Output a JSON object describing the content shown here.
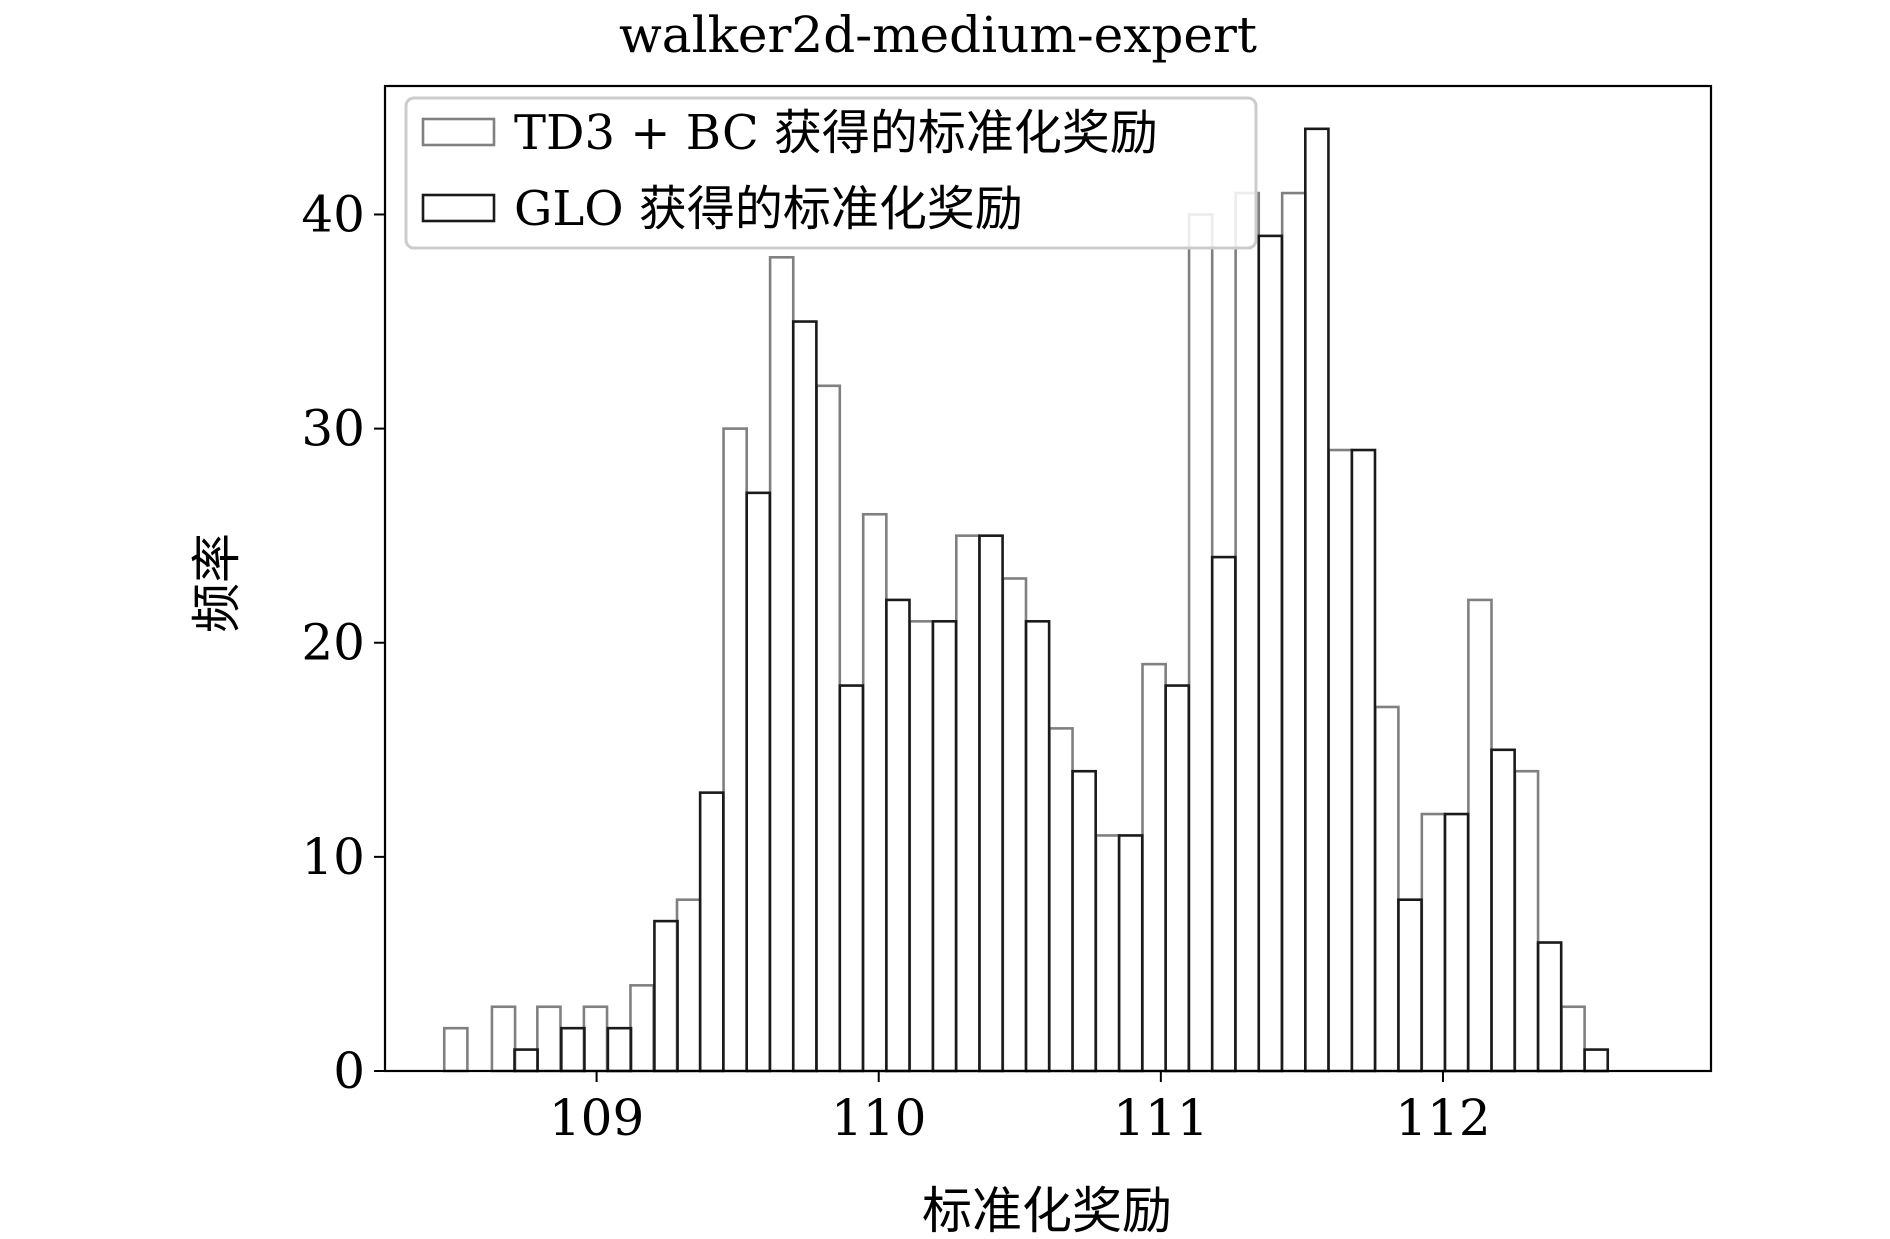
{
  "chart_data": {
    "type": "bar",
    "histogram": true,
    "title": "walker2d-medium-expert",
    "xlabel": "标准化奖励",
    "ylabel": "频率",
    "xlim": [
      108.25,
      112.95
    ],
    "ylim": [
      0,
      46
    ],
    "xticks": [
      109,
      110,
      111,
      112
    ],
    "yticks": [
      0,
      10,
      20,
      30,
      40
    ],
    "grid": false,
    "legend_position": "top-left",
    "series": [
      {
        "name": "TD3 + BC 获得的标准化奖励",
        "color": "#808080",
        "bin_width": 0.082,
        "bin_starts": [
          108.46,
          108.629,
          108.79,
          108.955,
          109.12,
          109.285,
          109.45,
          109.615,
          109.78,
          109.945,
          110.11,
          110.275,
          110.44,
          110.605,
          110.77,
          110.935,
          111.1,
          111.265,
          111.43,
          111.595,
          111.76,
          111.925,
          112.09,
          112.255,
          112.42
        ],
        "values": [
          2,
          3,
          3,
          3,
          4,
          8,
          30,
          38,
          32,
          26,
          21,
          25,
          23,
          16,
          11,
          19,
          40,
          41,
          41,
          29,
          17,
          12,
          22,
          14,
          3
        ]
      },
      {
        "name": "GLO 获得的标准化奖励",
        "color": "#1a1a1a",
        "bin_width": 0.082,
        "bin_starts": [
          108.709,
          108.875,
          109.04,
          109.205,
          109.367,
          109.532,
          109.697,
          109.862,
          110.027,
          110.192,
          110.357,
          110.522,
          110.687,
          110.852,
          111.017,
          111.182,
          111.347,
          111.512,
          111.677,
          111.842,
          112.007,
          112.172,
          112.337,
          112.502
        ],
        "values": [
          1,
          2,
          2,
          7,
          13,
          27,
          35,
          18,
          22,
          21,
          25,
          21,
          14,
          11,
          18,
          24,
          39,
          44,
          29,
          8,
          12,
          15,
          6,
          1
        ]
      }
    ]
  }
}
